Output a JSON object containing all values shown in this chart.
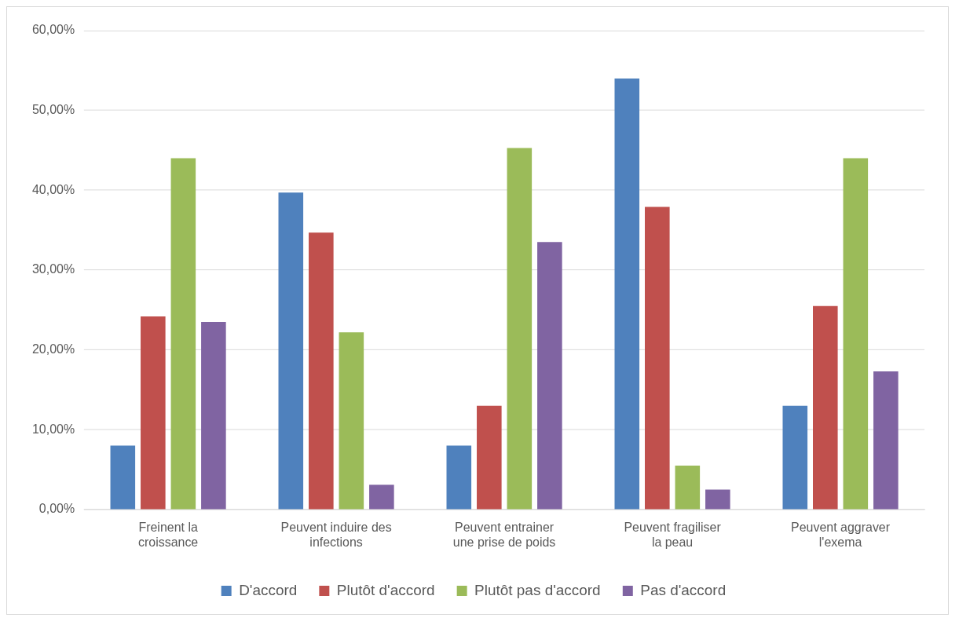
{
  "chart_data": {
    "type": "bar",
    "categories": [
      "Freinent la croissance",
      "Peuvent induire des infections",
      "Peuvent entrainer une prise de poids",
      "Peuvent fragiliser la peau",
      "Peuvent aggraver l'exema"
    ],
    "series": [
      {
        "name": "D'accord",
        "color": "#4f81bd",
        "values": [
          8.0,
          39.7,
          8.0,
          54.0,
          13.0
        ]
      },
      {
        "name": "Plutôt d'accord",
        "color": "#c0504d",
        "values": [
          24.2,
          34.7,
          13.0,
          37.9,
          25.5
        ]
      },
      {
        "name": "Plutôt pas d'accord",
        "color": "#9bbb59",
        "values": [
          44.0,
          22.2,
          45.3,
          5.5,
          44.0
        ]
      },
      {
        "name": "Pas d'accord",
        "color": "#8064a2",
        "values": [
          23.5,
          3.1,
          33.5,
          2.5,
          17.3
        ]
      }
    ],
    "ylim": [
      0,
      60
    ],
    "yticks": [
      {
        "value": 0,
        "label": "0,00%"
      },
      {
        "value": 10,
        "label": "10,00%"
      },
      {
        "value": 20,
        "label": "20,00%"
      },
      {
        "value": 30,
        "label": "30,00%"
      },
      {
        "value": 40,
        "label": "40,00%"
      },
      {
        "value": 50,
        "label": "50,00%"
      },
      {
        "value": 60,
        "label": "60,00%"
      }
    ],
    "grid": "y",
    "legend": "bottom"
  }
}
